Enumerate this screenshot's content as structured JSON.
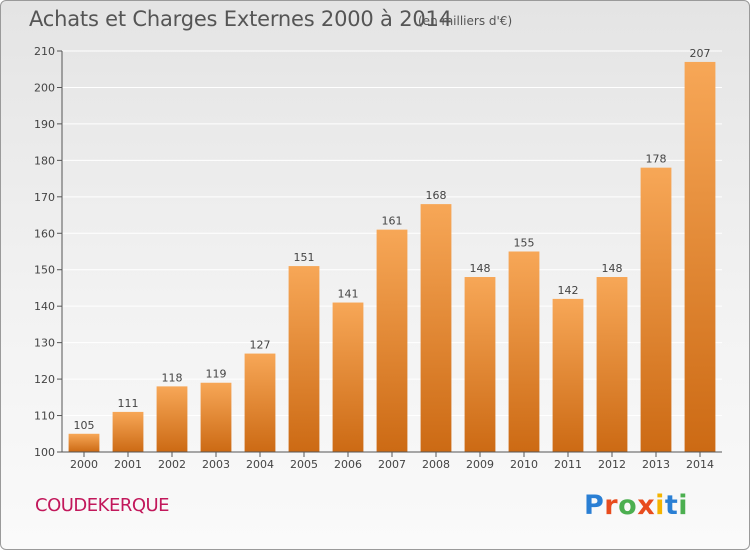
{
  "header": {
    "title": "Achats et Charges Externes 2000 à 2014",
    "subtitle": "(en milliers d'€)"
  },
  "footer": {
    "city": "COUDEKERQUE",
    "logo_text": "Proxiti",
    "logo_colors": [
      "#2a7fd4",
      "#e84c1e",
      "#4caf50",
      "#e84c1e",
      "#f4b400",
      "#2a7fd4",
      "#4caf50"
    ]
  },
  "colors": {
    "bar_light": "#f7a757",
    "bar_dark": "#cc6a14",
    "axis": "#555555",
    "grid": "#ffffff"
  },
  "chart_data": {
    "type": "bar",
    "title": "Achats et Charges Externes 2000 à 2014",
    "subtitle": "(en milliers d'€)",
    "xlabel": "",
    "ylabel": "",
    "categories": [
      "2000",
      "2001",
      "2002",
      "2003",
      "2004",
      "2005",
      "2006",
      "2007",
      "2008",
      "2009",
      "2010",
      "2011",
      "2012",
      "2013",
      "2014"
    ],
    "values": [
      105,
      111,
      118,
      119,
      127,
      151,
      141,
      161,
      168,
      148,
      155,
      142,
      148,
      178,
      207
    ],
    "ylim": [
      100,
      210
    ],
    "yticks": [
      100,
      110,
      120,
      130,
      140,
      150,
      160,
      170,
      180,
      190,
      200,
      210
    ],
    "grid": true,
    "data_labels": true
  }
}
